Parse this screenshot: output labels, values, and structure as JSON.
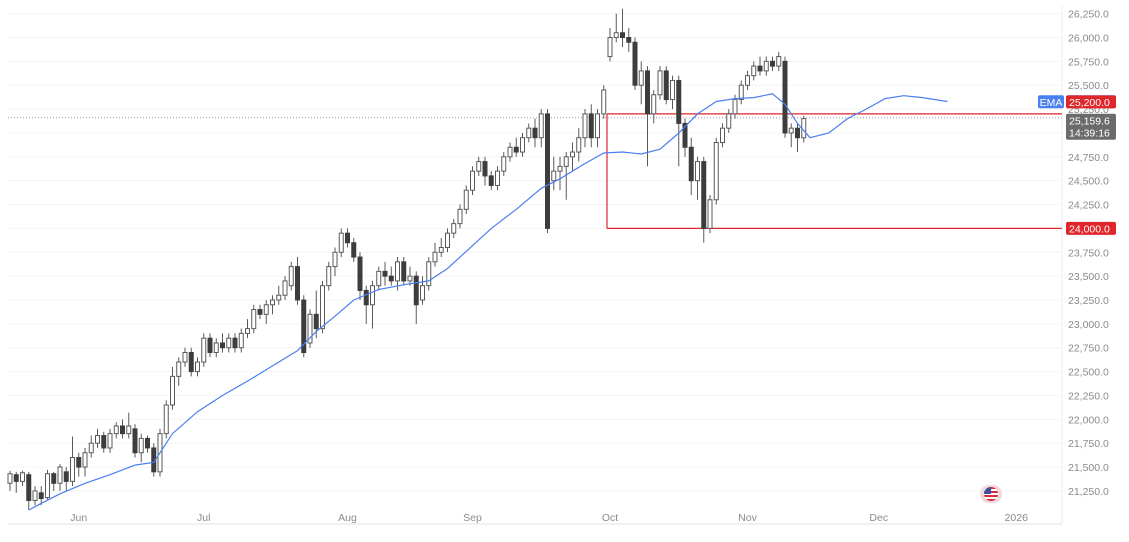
{
  "chart_data": {
    "type": "candlestick",
    "y_axis": {
      "ticks": [
        "26,250.0",
        "26,000.0",
        "25,750.0",
        "25,500.0",
        "25,250.0",
        "25,000.0",
        "24,750.0",
        "24,500.0",
        "24,250.0",
        "24,000.0",
        "23,750.0",
        "23,500.0",
        "23,250.0",
        "23,000.0",
        "22,750.0",
        "22,500.0",
        "22,250.0",
        "22,000.0",
        "21,750.0",
        "21,500.0",
        "21,250.0"
      ],
      "range": [
        21050,
        26330
      ],
      "position": "right"
    },
    "x_axis": {
      "labels": [
        {
          "text": "Jun",
          "index": 11
        },
        {
          "text": "Jul",
          "index": 31
        },
        {
          "text": "Aug",
          "index": 54
        },
        {
          "text": "Sep",
          "index": 74
        },
        {
          "text": "Oct",
          "index": 96
        },
        {
          "text": "Nov",
          "index": 118
        },
        {
          "text": "Dec",
          "index": 139
        },
        {
          "text": "2026",
          "index": 161
        }
      ]
    },
    "candles": [
      [
        21330,
        21430,
        21250,
        21460
      ],
      [
        21420,
        21350,
        21230,
        21450
      ],
      [
        21350,
        21440,
        21300,
        21460
      ],
      [
        21420,
        21150,
        21050,
        21450
      ],
      [
        21150,
        21250,
        21100,
        21300
      ],
      [
        21230,
        21170,
        21100,
        21300
      ],
      [
        21180,
        21430,
        21150,
        21470
      ],
      [
        21430,
        21330,
        21250,
        21450
      ],
      [
        21330,
        21500,
        21250,
        21530
      ],
      [
        21450,
        21350,
        21250,
        21500
      ],
      [
        21350,
        21600,
        21300,
        21820
      ],
      [
        21600,
        21500,
        21400,
        21650
      ],
      [
        21500,
        21650,
        21400,
        21700
      ],
      [
        21650,
        21750,
        21600,
        21830
      ],
      [
        21750,
        21830,
        21700,
        21900
      ],
      [
        21830,
        21700,
        21650,
        21870
      ],
      [
        21700,
        21850,
        21650,
        21900
      ],
      [
        21850,
        21930,
        21800,
        21970
      ],
      [
        21930,
        21850,
        21800,
        22000
      ],
      [
        21850,
        21930,
        21800,
        22070
      ],
      [
        21900,
        21650,
        21600,
        21950
      ],
      [
        21650,
        21800,
        21550,
        21850
      ],
      [
        21800,
        21700,
        21650,
        21830
      ],
      [
        21700,
        21450,
        21400,
        21750
      ],
      [
        21450,
        21850,
        21400,
        21900
      ],
      [
        21850,
        22150,
        21800,
        22200
      ],
      [
        22150,
        22450,
        22100,
        22550
      ],
      [
        22450,
        22600,
        22350,
        22650
      ],
      [
        22600,
        22700,
        22550,
        22750
      ],
      [
        22700,
        22500,
        22450,
        22750
      ],
      [
        22500,
        22600,
        22450,
        22650
      ],
      [
        22600,
        22850,
        22550,
        22900
      ],
      [
        22850,
        22700,
        22650,
        22900
      ],
      [
        22700,
        22800,
        22650,
        22850
      ],
      [
        22800,
        22750,
        22700,
        22900
      ],
      [
        22750,
        22850,
        22700,
        22900
      ],
      [
        22850,
        22750,
        22700,
        22900
      ],
      [
        22750,
        22900,
        22700,
        22950
      ],
      [
        22900,
        22950,
        22850,
        23050
      ],
      [
        22950,
        23150,
        22900,
        23200
      ],
      [
        23150,
        23100,
        23050,
        23200
      ],
      [
        23100,
        23200,
        23000,
        23250
      ],
      [
        23200,
        23250,
        23100,
        23300
      ],
      [
        23250,
        23300,
        23200,
        23400
      ],
      [
        23300,
        23450,
        23250,
        23500
      ],
      [
        23400,
        23600,
        23350,
        23650
      ],
      [
        23600,
        23250,
        23200,
        23700
      ],
      [
        23250,
        22700,
        22650,
        23300
      ],
      [
        22800,
        23100,
        22750,
        23150
      ],
      [
        23100,
        22950,
        22850,
        23350
      ],
      [
        22950,
        23400,
        22900,
        23450
      ],
      [
        23400,
        23600,
        23350,
        23650
      ],
      [
        23600,
        23750,
        23500,
        23800
      ],
      [
        23750,
        23950,
        23700,
        24000
      ],
      [
        23950,
        23850,
        23800,
        24000
      ],
      [
        23850,
        23700,
        23650,
        23900
      ],
      [
        23700,
        23350,
        23250,
        23750
      ],
      [
        23350,
        23200,
        23000,
        23400
      ],
      [
        23200,
        23400,
        22950,
        23450
      ],
      [
        23400,
        23550,
        23350,
        23600
      ],
      [
        23550,
        23500,
        23400,
        23650
      ],
      [
        23500,
        23450,
        23400,
        23600
      ],
      [
        23450,
        23650,
        23350,
        23700
      ],
      [
        23650,
        23450,
        23400,
        23700
      ],
      [
        23450,
        23500,
        23400,
        23600
      ],
      [
        23500,
        23200,
        23000,
        23550
      ],
      [
        23250,
        23400,
        23200,
        23500
      ],
      [
        23400,
        23650,
        23350,
        23700
      ],
      [
        23650,
        23750,
        23600,
        23850
      ],
      [
        23750,
        23800,
        23700,
        23900
      ],
      [
        23800,
        23950,
        23750,
        24000
      ],
      [
        23950,
        24050,
        23900,
        24100
      ],
      [
        24050,
        24200,
        24000,
        24250
      ],
      [
        24200,
        24400,
        24150,
        24450
      ],
      [
        24400,
        24600,
        24350,
        24650
      ],
      [
        24600,
        24700,
        24550,
        24750
      ],
      [
        24700,
        24550,
        24450,
        24750
      ],
      [
        24550,
        24450,
        24400,
        24600
      ],
      [
        24450,
        24600,
        24400,
        24650
      ],
      [
        24600,
        24750,
        24550,
        24800
      ],
      [
        24750,
        24850,
        24700,
        24900
      ],
      [
        24850,
        24800,
        24750,
        24950
      ],
      [
        24800,
        24950,
        24750,
        25000
      ],
      [
        24950,
        25050,
        24900,
        25100
      ],
      [
        25050,
        24950,
        24850,
        25150
      ],
      [
        24950,
        25200,
        24850,
        25250
      ],
      [
        25200,
        24000,
        23950,
        25250
      ],
      [
        24500,
        24600,
        24400,
        24750
      ],
      [
        24600,
        24650,
        24400,
        24750
      ],
      [
        24650,
        24750,
        24300,
        24800
      ],
      [
        24750,
        24800,
        24600,
        24900
      ],
      [
        24800,
        24950,
        24700,
        25050
      ],
      [
        24950,
        25200,
        24850,
        25250
      ],
      [
        25200,
        24950,
        24850,
        25300
      ],
      [
        24950,
        25200,
        24850,
        25250
      ],
      [
        25200,
        25450,
        25150,
        25500
      ],
      [
        25800,
        26000,
        25750,
        26100
      ],
      [
        26000,
        26050,
        25950,
        26250
      ],
      [
        26050,
        26000,
        25900,
        26300
      ],
      [
        26000,
        25950,
        25850,
        26100
      ],
      [
        25950,
        25500,
        25450,
        26000
      ],
      [
        25500,
        25650,
        25300,
        25750
      ],
      [
        25650,
        25200,
        24650,
        25700
      ],
      [
        25200,
        25400,
        25100,
        25450
      ],
      [
        25400,
        25650,
        25350,
        25700
      ],
      [
        25650,
        25350,
        25300,
        25700
      ],
      [
        25350,
        25550,
        25250,
        25600
      ],
      [
        25550,
        25100,
        24650,
        25600
      ],
      [
        25100,
        24850,
        24750,
        25150
      ],
      [
        24850,
        24500,
        24350,
        24950
      ],
      [
        24500,
        24700,
        24300,
        24750
      ],
      [
        24700,
        24000,
        23850,
        24750
      ],
      [
        24000,
        24300,
        23950,
        24350
      ],
      [
        24300,
        24900,
        24250,
        24950
      ],
      [
        24900,
        25050,
        24850,
        25100
      ],
      [
        25050,
        25200,
        25000,
        25250
      ],
      [
        25200,
        25350,
        25150,
        25400
      ],
      [
        25350,
        25500,
        25300,
        25550
      ],
      [
        25500,
        25600,
        25450,
        25650
      ],
      [
        25600,
        25700,
        25550,
        25750
      ],
      [
        25700,
        25650,
        25600,
        25800
      ],
      [
        25650,
        25750,
        25600,
        25800
      ],
      [
        25750,
        25700,
        25650,
        25800
      ],
      [
        25700,
        25800,
        25650,
        25850
      ],
      [
        25750,
        25000,
        24950,
        25800
      ],
      [
        25000,
        25050,
        24850,
        25100
      ],
      [
        25050,
        24950,
        24800,
        25100
      ],
      [
        24950,
        25150,
        24900,
        25180
      ]
    ],
    "ema": {
      "label": "EMA",
      "value": "25,326.8",
      "color": "#4a7ff0",
      "values": [
        [
          3,
          21050
        ],
        [
          5,
          21120
        ],
        [
          8,
          21220
        ],
        [
          12,
          21330
        ],
        [
          16,
          21420
        ],
        [
          20,
          21520
        ],
        [
          23,
          21550
        ],
        [
          26,
          21850
        ],
        [
          30,
          22080
        ],
        [
          34,
          22250
        ],
        [
          38,
          22400
        ],
        [
          42,
          22560
        ],
        [
          46,
          22720
        ],
        [
          49,
          22920
        ],
        [
          52,
          23080
        ],
        [
          55,
          23250
        ],
        [
          59,
          23360
        ],
        [
          63,
          23410
        ],
        [
          67,
          23450
        ],
        [
          70,
          23580
        ],
        [
          73,
          23760
        ],
        [
          77,
          24000
        ],
        [
          81,
          24200
        ],
        [
          85,
          24420
        ],
        [
          88,
          24520
        ],
        [
          92,
          24680
        ],
        [
          95,
          24790
        ],
        [
          98,
          24800
        ],
        [
          101,
          24780
        ],
        [
          104,
          24830
        ],
        [
          107,
          25000
        ],
        [
          110,
          25200
        ],
        [
          113,
          25330
        ],
        [
          116,
          25360
        ],
        [
          119,
          25370
        ],
        [
          122,
          25410
        ],
        [
          124,
          25300
        ],
        [
          126,
          25100
        ],
        [
          128,
          24950
        ],
        [
          131,
          25000
        ],
        [
          134,
          25150
        ],
        [
          137,
          25250
        ],
        [
          140,
          25360
        ],
        [
          143,
          25390
        ],
        [
          146,
          25370
        ],
        [
          150,
          25330
        ]
      ]
    },
    "levels": [
      {
        "value": 25200,
        "label": "25,200.0",
        "color": "#e0262b",
        "from_index": 96
      },
      {
        "value": 24000,
        "label": "24,000.0",
        "color": "#e0262b",
        "from_index": 96
      }
    ],
    "last_price": {
      "value": 25159.6,
      "label": "25,159.6",
      "countdown": "14:39:16",
      "bg": "#6b6b6b"
    },
    "colors": {
      "up": "#ffffff",
      "up_border": "#5a5a5a",
      "down": "#3d3d3d",
      "grid": "#f4f4f4",
      "axis_text": "#8a8a8a"
    },
    "grid": true,
    "legend": "none"
  }
}
